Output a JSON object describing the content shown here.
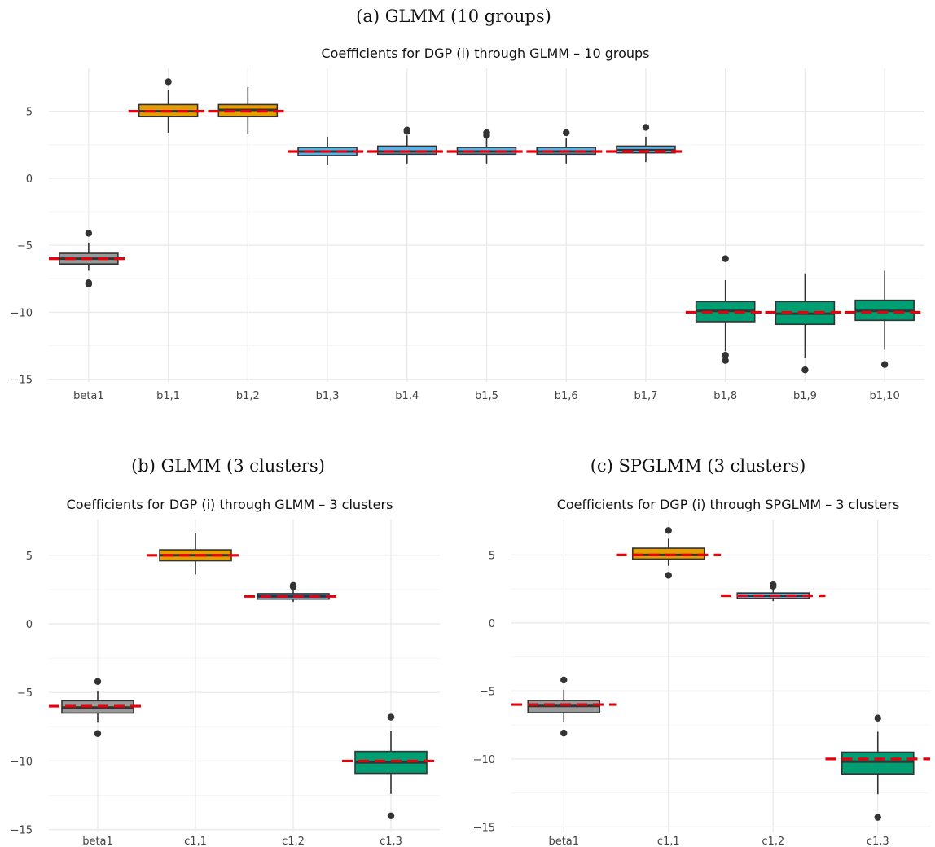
{
  "chart_data": [
    {
      "id": "a",
      "type": "box",
      "caption": "(a) GLMM (10 groups)",
      "title": "Coefficients for DGP (i) through GLMM – 10 groups",
      "categories": [
        "beta1",
        "b1,1",
        "b1,2",
        "b1,3",
        "b1,4",
        "b1,5",
        "b1,6",
        "b1,7",
        "b1,8",
        "b1,9",
        "b1,10"
      ],
      "ylim": [
        -15.2,
        8.2
      ],
      "yticks": [
        5,
        0,
        -5,
        -10,
        -15
      ],
      "ytick_labels": [
        "5",
        "0",
        "−5",
        "−10",
        "−15"
      ],
      "grid": true,
      "boxes": [
        {
          "q1": -6.4,
          "median": -6.0,
          "q3": -5.6,
          "whisker_low": -6.9,
          "whisker_high": -4.8,
          "outliers": [
            -4.1,
            -7.8,
            -7.9
          ],
          "fill": "#999999",
          "true_value": -6
        },
        {
          "q1": 4.6,
          "median": 5.0,
          "q3": 5.5,
          "whisker_low": 3.4,
          "whisker_high": 6.6,
          "outliers": [
            7.2
          ],
          "fill": "#E69F00",
          "true_value": 5
        },
        {
          "q1": 4.6,
          "median": 5.1,
          "q3": 5.5,
          "whisker_low": 3.3,
          "whisker_high": 6.8,
          "outliers": [],
          "fill": "#E69F00",
          "true_value": 5
        },
        {
          "q1": 1.7,
          "median": 2.0,
          "q3": 2.3,
          "whisker_low": 1.0,
          "whisker_high": 3.1,
          "outliers": [],
          "fill": "#56B4E9",
          "true_value": 2
        },
        {
          "q1": 1.8,
          "median": 2.0,
          "q3": 2.4,
          "whisker_low": 1.1,
          "whisker_high": 3.2,
          "outliers": [
            3.5,
            3.6
          ],
          "fill": "#56B4E9",
          "true_value": 2
        },
        {
          "q1": 1.8,
          "median": 2.0,
          "q3": 2.3,
          "whisker_low": 1.1,
          "whisker_high": 3.0,
          "outliers": [
            3.2,
            3.4
          ],
          "fill": "#56B4E9",
          "true_value": 2
        },
        {
          "q1": 1.8,
          "median": 2.0,
          "q3": 2.3,
          "whisker_low": 1.1,
          "whisker_high": 3.0,
          "outliers": [
            3.4
          ],
          "fill": "#56B4E9",
          "true_value": 2
        },
        {
          "q1": 1.9,
          "median": 2.1,
          "q3": 2.4,
          "whisker_low": 1.2,
          "whisker_high": 3.1,
          "outliers": [
            3.8
          ],
          "fill": "#56B4E9",
          "true_value": 2
        },
        {
          "q1": -10.7,
          "median": -9.9,
          "q3": -9.2,
          "whisker_low": -12.9,
          "whisker_high": -7.6,
          "outliers": [
            -6.0,
            -13.2,
            -13.6
          ],
          "fill": "#009E73",
          "true_value": -10
        },
        {
          "q1": -10.9,
          "median": -10.1,
          "q3": -9.2,
          "whisker_low": -13.4,
          "whisker_high": -7.1,
          "outliers": [
            -14.3
          ],
          "fill": "#009E73",
          "true_value": -10
        },
        {
          "q1": -10.6,
          "median": -9.9,
          "q3": -9.1,
          "whisker_low": -12.8,
          "whisker_high": -6.9,
          "outliers": [
            -13.9
          ],
          "fill": "#009E73",
          "true_value": -10
        }
      ]
    },
    {
      "id": "b",
      "type": "box",
      "caption": "(b) GLMM (3 clusters)",
      "title": "Coefficients for DGP (i) through GLMM – 3 clusters",
      "categories": [
        "beta1",
        "c1,1",
        "c1,2",
        "c1,3"
      ],
      "ylim": [
        -15.2,
        7.6
      ],
      "yticks": [
        5,
        0,
        -5,
        -10,
        -15
      ],
      "ytick_labels": [
        "5",
        "0",
        "−5",
        "−10",
        "−15"
      ],
      "grid": true,
      "boxes": [
        {
          "q1": -6.5,
          "median": -6.1,
          "q3": -5.6,
          "whisker_low": -7.2,
          "whisker_high": -4.9,
          "outliers": [
            -4.2,
            -8.0
          ],
          "fill": "#999999",
          "true_value": -6
        },
        {
          "q1": 4.6,
          "median": 5.0,
          "q3": 5.4,
          "whisker_low": 3.6,
          "whisker_high": 6.6,
          "outliers": [],
          "fill": "#E69F00",
          "true_value": 5
        },
        {
          "q1": 1.8,
          "median": 2.0,
          "q3": 2.2,
          "whisker_low": 1.6,
          "whisker_high": 2.5,
          "outliers": [
            2.7,
            2.8
          ],
          "fill": "#56B4E9",
          "true_value": 2
        },
        {
          "q1": -10.9,
          "median": -10.1,
          "q3": -9.3,
          "whisker_low": -12.4,
          "whisker_high": -7.8,
          "outliers": [
            -6.8,
            -14.0
          ],
          "fill": "#009E73",
          "true_value": -10
        }
      ]
    },
    {
      "id": "c",
      "type": "box",
      "caption": "(c) SPGLMM (3 clusters)",
      "title": "Coefficients for DGP (i) through SPGLMM – 3 clusters",
      "categories": [
        "beta1",
        "c1,1",
        "c1,2",
        "c1,3"
      ],
      "ylim": [
        -15.4,
        7.6
      ],
      "yticks": [
        5,
        0,
        -5,
        -10,
        -15
      ],
      "ytick_labels": [
        "5",
        "0",
        "−5",
        "−10",
        "−15"
      ],
      "grid": true,
      "boxes": [
        {
          "q1": -6.6,
          "median": -6.1,
          "q3": -5.7,
          "whisker_low": -7.3,
          "whisker_high": -4.9,
          "outliers": [
            -4.2,
            -8.1
          ],
          "fill": "#999999",
          "true_value": -6
        },
        {
          "q1": 4.7,
          "median": 5.0,
          "q3": 5.5,
          "whisker_low": 4.2,
          "whisker_high": 6.2,
          "outliers": [
            6.8,
            3.5
          ],
          "fill": "#E69F00",
          "true_value": 5
        },
        {
          "q1": 1.8,
          "median": 2.0,
          "q3": 2.2,
          "whisker_low": 1.6,
          "whisker_high": 2.5,
          "outliers": [
            2.7,
            2.8
          ],
          "fill": "#56B4E9",
          "true_value": 2
        },
        {
          "q1": -11.1,
          "median": -10.2,
          "q3": -9.5,
          "whisker_low": -12.6,
          "whisker_high": -8.0,
          "outliers": [
            -7.0,
            -14.3
          ],
          "fill": "#009E73",
          "true_value": -10
        }
      ]
    }
  ],
  "colors": {
    "true_value_line": "#E8000B",
    "box_outline": "#333333",
    "outlier": "#333333",
    "grid_major": "#EBEBEB",
    "grid_minor": "#F5F5F5"
  }
}
